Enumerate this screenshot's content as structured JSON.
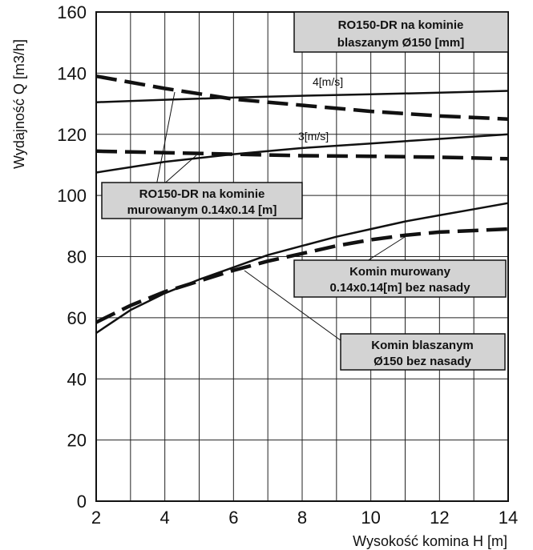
{
  "chart_data": {
    "type": "line",
    "title": "",
    "xlabel": "Wysokość komina H [m]",
    "ylabel": "Wydajność Q [m3/h]",
    "xlim": [
      2,
      14
    ],
    "ylim": [
      0,
      160
    ],
    "x_ticks": [
      2,
      4,
      6,
      8,
      10,
      12,
      14
    ],
    "y_ticks": [
      0,
      20,
      40,
      60,
      80,
      100,
      120,
      140,
      160
    ],
    "grid": true,
    "series": [
      {
        "style": "solid",
        "x": [
          2,
          4,
          6,
          8,
          10,
          12,
          14
        ],
        "y": [
          130.5,
          131.3,
          132,
          132.6,
          133.1,
          133.6,
          134.2
        ]
      },
      {
        "style": "solid",
        "x": [
          2,
          4,
          6,
          8,
          10,
          12,
          14
        ],
        "y": [
          107.5,
          111,
          113.5,
          115.5,
          117,
          118.5,
          120
        ]
      },
      {
        "style": "dashed",
        "x": [
          2,
          4,
          6,
          8,
          10,
          12,
          14
        ],
        "y": [
          139,
          135,
          131.5,
          129.5,
          127.5,
          126,
          125
        ]
      },
      {
        "style": "dashed",
        "x": [
          2,
          4,
          6,
          8,
          10,
          12,
          14
        ],
        "y": [
          114.5,
          114,
          113.5,
          113,
          112.8,
          112.5,
          112
        ]
      },
      {
        "style": "solid",
        "x": [
          2,
          3,
          4,
          5,
          6,
          7,
          8,
          9,
          10,
          11,
          12,
          13,
          14
        ],
        "y": [
          55,
          62.5,
          68,
          72.5,
          76.5,
          80.5,
          83.5,
          86.5,
          89,
          91.5,
          93.5,
          95.5,
          97.5
        ]
      },
      {
        "style": "dashed",
        "x": [
          2,
          3,
          4,
          5,
          6,
          7,
          8,
          9,
          10,
          11,
          12,
          13,
          14
        ],
        "y": [
          58.5,
          64,
          68.5,
          72,
          75.5,
          78.5,
          81,
          83.5,
          85.5,
          87,
          88,
          88.5,
          89
        ]
      }
    ],
    "annotations": {
      "speed_4": "4[m/s]",
      "speed_3": "3[m/s]",
      "box_ro_steel_line1": "RO150-DR na kominie",
      "box_ro_steel_line2": "blaszanym Ø150 [mm]",
      "box_ro_brick_line1": "RO150-DR na kominie",
      "box_ro_brick_line2": "murowanym 0.14x0.14 [m]",
      "box_brick_line1": "Komin murowany",
      "box_brick_line2": "0.14x0.14[m] bez nasady",
      "box_steel_line1": "Komin blaszanym",
      "box_steel_line2": "Ø150 bez nasady"
    }
  }
}
